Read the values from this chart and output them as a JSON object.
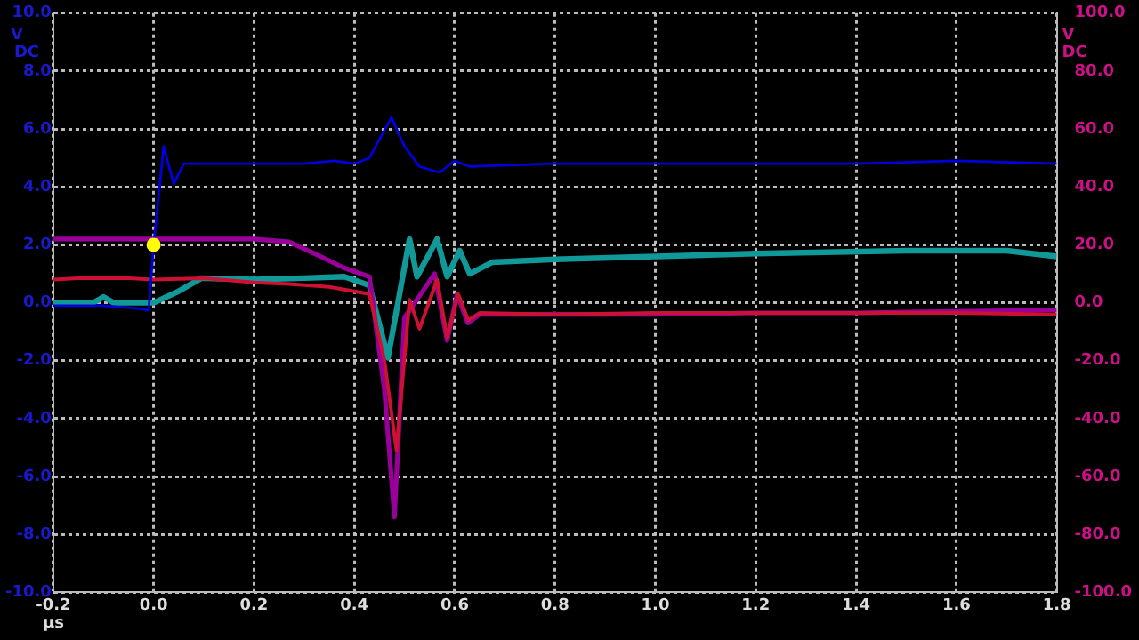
{
  "chart_data": {
    "type": "line",
    "xlabel": "µs",
    "ylabel": "V DC",
    "y2label": "V DC",
    "xlim": [
      -0.2,
      1.8
    ],
    "xticks": [
      {
        "value": -0.2,
        "label": "-0.2"
      },
      {
        "value": 0,
        "label": "0.0"
      },
      {
        "value": 0.2,
        "label": "0.2"
      },
      {
        "value": 0.4,
        "label": "0.4"
      },
      {
        "value": 0.6,
        "label": "0.6"
      },
      {
        "value": 0.8,
        "label": "0.8"
      },
      {
        "value": 1.0,
        "label": "1.0"
      },
      {
        "value": 1.2,
        "label": "1.2"
      },
      {
        "value": 1.4,
        "label": "1.4"
      },
      {
        "value": 1.6,
        "label": "1.6"
      },
      {
        "value": 1.8,
        "label": "1.8"
      }
    ],
    "ylim": [
      -10,
      10
    ],
    "yticks": [
      {
        "value": -10,
        "label": "-10.0"
      },
      {
        "value": -8,
        "label": "-8.0"
      },
      {
        "value": -6,
        "label": "-6.0"
      },
      {
        "value": -4,
        "label": "-4.0"
      },
      {
        "value": -2,
        "label": "-2.0"
      },
      {
        "value": 0,
        "label": "0.0"
      },
      {
        "value": 2,
        "label": "2.0"
      },
      {
        "value": 4,
        "label": "4.0"
      },
      {
        "value": 6,
        "label": "6.0"
      },
      {
        "value": 8,
        "label": "8.0"
      },
      {
        "value": 10,
        "label": "10.0"
      }
    ],
    "y2lim": [
      -100,
      100
    ],
    "y2ticks": [
      {
        "value": -100,
        "label": "-100.0"
      },
      {
        "value": -80,
        "label": "-80.0"
      },
      {
        "value": -60,
        "label": "-60.0"
      },
      {
        "value": -40,
        "label": "-40.0"
      },
      {
        "value": -20,
        "label": "-20.0"
      },
      {
        "value": 0,
        "label": "0.0"
      },
      {
        "value": 20,
        "label": "20.0"
      },
      {
        "value": 40,
        "label": "40.0"
      },
      {
        "value": 60,
        "label": "60.0"
      },
      {
        "value": 80,
        "label": "80.0"
      },
      {
        "value": 100,
        "label": "100.0"
      }
    ],
    "grid": true,
    "legend": false,
    "line_style": "solid",
    "series": [
      {
        "color": "#0000dd",
        "x": [
          -0.2,
          -0.1,
          -0.03,
          -0.01,
          0.0,
          0.02,
          0.04,
          0.06,
          0.1,
          0.2,
          0.3,
          0.36,
          0.4,
          0.43,
          0.474,
          0.5,
          0.53,
          0.57,
          0.6,
          0.63,
          0.8,
          1.0,
          1.2,
          1.4,
          1.6,
          1.8
        ],
        "values": [
          -0.1,
          -0.1,
          -0.2,
          -0.25,
          2.0,
          5.4,
          4.1,
          4.8,
          4.8,
          4.8,
          4.8,
          4.9,
          4.8,
          5.0,
          6.4,
          5.4,
          4.7,
          4.5,
          4.9,
          4.7,
          4.8,
          4.8,
          4.8,
          4.8,
          4.9,
          4.8
        ]
      },
      {
        "color": "#cc1133",
        "x": [
          -0.2,
          -0.15,
          -0.05,
          0.0,
          0.1,
          0.2,
          0.27,
          0.35,
          0.43,
          0.46,
          0.484,
          0.51,
          0.53,
          0.565,
          0.585,
          0.607,
          0.627,
          0.65,
          0.8,
          1.0,
          1.2,
          1.4,
          1.6,
          1.8
        ],
        "values": [
          0.8,
          0.85,
          0.85,
          0.8,
          0.85,
          0.7,
          0.65,
          0.55,
          0.3,
          -2.0,
          -5.1,
          0.1,
          -0.9,
          0.8,
          -1.2,
          0.3,
          -0.6,
          -0.35,
          -0.4,
          -0.35,
          -0.35,
          -0.35,
          -0.35,
          -0.4
        ]
      },
      {
        "color": "#990099",
        "x": [
          -0.2,
          -0.1,
          0.0,
          0.1,
          0.2,
          0.27,
          0.32,
          0.38,
          0.43,
          0.46,
          0.48,
          0.5,
          0.51,
          0.56,
          0.585,
          0.605,
          0.626,
          0.65,
          0.8,
          1.0,
          1.2,
          1.4,
          1.6,
          1.8
        ],
        "values": [
          2.2,
          2.2,
          2.2,
          2.2,
          2.2,
          2.1,
          1.7,
          1.2,
          0.9,
          -3.0,
          -7.4,
          -0.5,
          -0.27,
          1.0,
          -1.3,
          0.3,
          -0.7,
          -0.4,
          -0.4,
          -0.4,
          -0.35,
          -0.35,
          -0.3,
          -0.25
        ]
      },
      {
        "color": "#119999",
        "x": [
          -0.2,
          -0.12,
          -0.1,
          -0.08,
          0.0,
          0.05,
          0.095,
          0.2,
          0.3,
          0.38,
          0.43,
          0.467,
          0.51,
          0.525,
          0.565,
          0.585,
          0.61,
          0.63,
          0.675,
          0.8,
          1.0,
          1.2,
          1.5,
          1.7,
          1.8
        ],
        "values": [
          0.0,
          0.0,
          0.2,
          0.0,
          0.0,
          0.4,
          0.85,
          0.8,
          0.85,
          0.9,
          0.6,
          -1.9,
          2.2,
          0.9,
          2.2,
          0.9,
          1.8,
          1.0,
          1.4,
          1.5,
          1.6,
          1.7,
          1.8,
          1.8,
          1.6
        ]
      },
      {
        "type": "scatter",
        "marker": "circle",
        "color": "#ffff00",
        "x": [
          0.0
        ],
        "values": [
          2.0
        ]
      }
    ]
  }
}
